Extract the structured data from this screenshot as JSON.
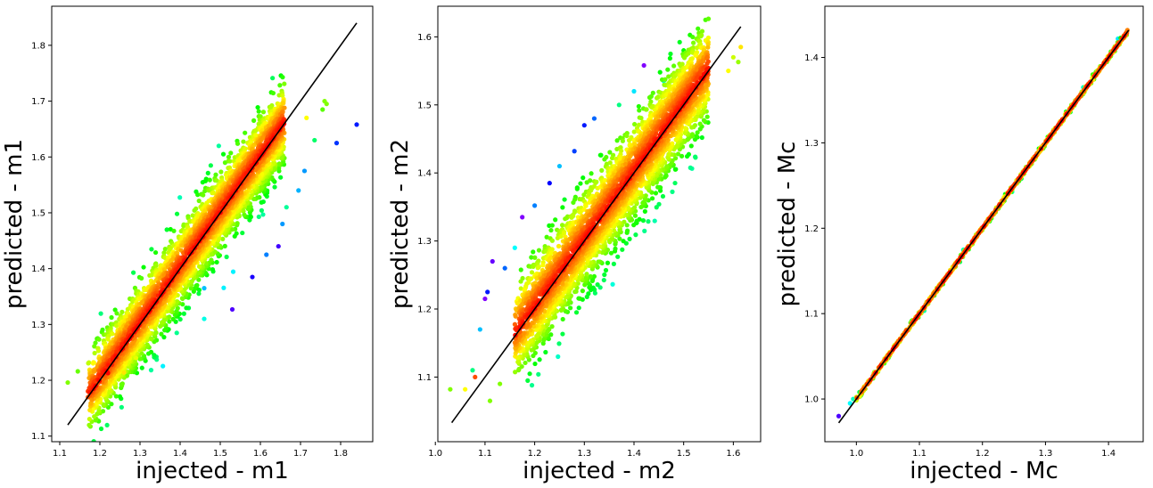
{
  "chart_data": [
    {
      "type": "scatter",
      "xlabel": "injected - m1",
      "ylabel": "predicted - m1",
      "xlim": [
        1.08,
        1.88
      ],
      "ylim": [
        1.09,
        1.87
      ],
      "xticks": [
        "1.1",
        "1.2",
        "1.3",
        "1.4",
        "1.5",
        "1.6",
        "1.7",
        "1.8"
      ],
      "yticks": [
        "1.1",
        "1.2",
        "1.3",
        "1.4",
        "1.5",
        "1.6",
        "1.7",
        "1.8"
      ],
      "reference_line": {
        "x": [
          1.12,
          1.84
        ],
        "y": [
          1.12,
          1.84
        ],
        "color": "#000000"
      },
      "cloud": {
        "x_range": [
          1.17,
          1.66
        ],
        "slope": 1.0,
        "intercept": 0.0,
        "spread": 0.13,
        "spread_slope": 0.0
      },
      "colormap": "gist_rainbow",
      "outliers": [
        {
          "x": 1.12,
          "y": 1.196,
          "c": 0.3
        },
        {
          "x": 1.145,
          "y": 1.216,
          "c": 0.32
        },
        {
          "x": 1.195,
          "y": 1.257,
          "c": 0.25
        },
        {
          "x": 1.22,
          "y": 1.213,
          "c": 0.0
        },
        {
          "x": 1.23,
          "y": 1.228,
          "c": 0.03
        },
        {
          "x": 1.26,
          "y": 1.214,
          "c": 0.18
        },
        {
          "x": 1.29,
          "y": 1.24,
          "c": 0.22
        },
        {
          "x": 1.46,
          "y": 1.365,
          "c": 0.65
        },
        {
          "x": 1.46,
          "y": 1.31,
          "c": 0.58
        },
        {
          "x": 1.53,
          "y": 1.327,
          "c": 0.86
        },
        {
          "x": 1.58,
          "y": 1.385,
          "c": 0.82
        },
        {
          "x": 1.615,
          "y": 1.425,
          "c": 0.7
        },
        {
          "x": 1.645,
          "y": 1.44,
          "c": 0.85
        },
        {
          "x": 1.655,
          "y": 1.48,
          "c": 0.68
        },
        {
          "x": 1.665,
          "y": 1.51,
          "c": 0.52
        },
        {
          "x": 1.695,
          "y": 1.54,
          "c": 0.66
        },
        {
          "x": 1.71,
          "y": 1.575,
          "c": 0.68
        },
        {
          "x": 1.735,
          "y": 1.63,
          "c": 0.48
        },
        {
          "x": 1.755,
          "y": 1.685,
          "c": 0.33
        },
        {
          "x": 1.765,
          "y": 1.695,
          "c": 0.3
        },
        {
          "x": 1.76,
          "y": 1.7,
          "c": 0.3
        },
        {
          "x": 1.79,
          "y": 1.625,
          "c": 0.76
        },
        {
          "x": 1.84,
          "y": 1.658,
          "c": 0.78
        },
        {
          "x": 1.715,
          "y": 1.67,
          "c": 0.2
        },
        {
          "x": 1.66,
          "y": 1.688,
          "c": 0.12
        }
      ]
    },
    {
      "type": "scatter",
      "xlabel": "injected - m2",
      "ylabel": "predicted - m2",
      "xlim": [
        1.005,
        1.655
      ],
      "ylim": [
        1.005,
        1.645
      ],
      "xticks": [
        "1.0",
        "1.1",
        "1.2",
        "1.3",
        "1.4",
        "1.5",
        "1.6"
      ],
      "yticks": [
        "1.1",
        "1.2",
        "1.3",
        "1.4",
        "1.5",
        "1.6"
      ],
      "reference_line": {
        "x": [
          1.033,
          1.615
        ],
        "y": [
          1.033,
          1.615
        ],
        "color": "#000000"
      },
      "cloud": {
        "x_range": [
          1.16,
          1.55
        ],
        "slope": 1.0,
        "intercept": 0.0,
        "spread": 0.13,
        "spread_slope": 0.0
      },
      "colormap": "gist_rainbow",
      "outliers": [
        {
          "x": 1.03,
          "y": 1.082,
          "c": 0.3
        },
        {
          "x": 1.06,
          "y": 1.082,
          "c": 0.2
        },
        {
          "x": 1.075,
          "y": 1.11,
          "c": 0.5
        },
        {
          "x": 1.08,
          "y": 1.1,
          "c": 0.06
        },
        {
          "x": 1.09,
          "y": 1.17,
          "c": 0.65
        },
        {
          "x": 1.1,
          "y": 1.215,
          "c": 0.9
        },
        {
          "x": 1.105,
          "y": 1.225,
          "c": 0.78
        },
        {
          "x": 1.11,
          "y": 1.065,
          "c": 0.3
        },
        {
          "x": 1.115,
          "y": 1.27,
          "c": 0.88
        },
        {
          "x": 1.13,
          "y": 1.09,
          "c": 0.3
        },
        {
          "x": 1.14,
          "y": 1.26,
          "c": 0.72
        },
        {
          "x": 1.16,
          "y": 1.29,
          "c": 0.6
        },
        {
          "x": 1.175,
          "y": 1.335,
          "c": 0.9
        },
        {
          "x": 1.2,
          "y": 1.352,
          "c": 0.7
        },
        {
          "x": 1.23,
          "y": 1.385,
          "c": 0.8
        },
        {
          "x": 1.25,
          "y": 1.41,
          "c": 0.65
        },
        {
          "x": 1.28,
          "y": 1.432,
          "c": 0.75
        },
        {
          "x": 1.3,
          "y": 1.47,
          "c": 0.78
        },
        {
          "x": 1.32,
          "y": 1.48,
          "c": 0.72
        },
        {
          "x": 1.37,
          "y": 1.5,
          "c": 0.5
        },
        {
          "x": 1.4,
          "y": 1.52,
          "c": 0.62
        },
        {
          "x": 1.42,
          "y": 1.558,
          "c": 0.9
        },
        {
          "x": 1.46,
          "y": 1.535,
          "c": 0.56
        },
        {
          "x": 1.5,
          "y": 1.58,
          "c": 0.4
        },
        {
          "x": 1.53,
          "y": 1.595,
          "c": 0.34
        },
        {
          "x": 1.6,
          "y": 1.57,
          "c": 0.24
        },
        {
          "x": 1.61,
          "y": 1.563,
          "c": 0.28
        },
        {
          "x": 1.615,
          "y": 1.585,
          "c": 0.18
        },
        {
          "x": 1.59,
          "y": 1.55,
          "c": 0.2
        }
      ]
    },
    {
      "type": "scatter",
      "xlabel": "injected - Mc",
      "ylabel": "predicted - Mc",
      "xlim": [
        0.95,
        1.455
      ],
      "ylim": [
        0.95,
        1.46
      ],
      "xticks": [
        "1.0",
        "1.1",
        "1.2",
        "1.3",
        "1.4"
      ],
      "yticks": [
        "1.0",
        "1.1",
        "1.2",
        "1.3",
        "1.4"
      ],
      "reference_line": {
        "x": [
          0.972,
          1.432
        ],
        "y": [
          0.972,
          1.432
        ],
        "color": "#000000"
      },
      "cloud": {
        "x_range": [
          1.0,
          1.43
        ],
        "slope": 1.0,
        "intercept": 0.0,
        "spread": 0.005,
        "spread_slope": 0.0
      },
      "colormap": "gist_rainbow",
      "outliers": [
        {
          "x": 0.972,
          "y": 0.98,
          "c": 0.86
        },
        {
          "x": 0.99,
          "y": 0.995,
          "c": 0.6
        },
        {
          "x": 0.995,
          "y": 1.0,
          "c": 0.55
        },
        {
          "x": 1.005,
          "y": 1.008,
          "c": 0.45
        },
        {
          "x": 1.36,
          "y": 1.365,
          "c": 0.55
        },
        {
          "x": 1.375,
          "y": 1.38,
          "c": 0.35
        },
        {
          "x": 1.415,
          "y": 1.422,
          "c": 0.62
        },
        {
          "x": 1.43,
          "y": 1.432,
          "c": 0.1
        }
      ]
    }
  ]
}
